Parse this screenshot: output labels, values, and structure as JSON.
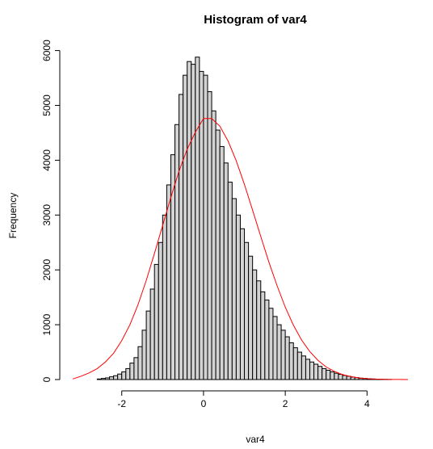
{
  "chart_data": {
    "type": "bar",
    "title": "Histogram of var4",
    "xlabel": "var4",
    "ylabel": "Frequency",
    "xlim": [
      -3.2,
      5.1
    ],
    "ylim": [
      0,
      6000
    ],
    "x_ticks": [
      -2,
      0,
      2,
      4
    ],
    "y_ticks": [
      0,
      1000,
      2000,
      3000,
      4000,
      5000,
      6000
    ],
    "bin_width": 0.1,
    "bin_start": -2.6,
    "counts": [
      10,
      20,
      30,
      50,
      70,
      100,
      140,
      200,
      300,
      400,
      600,
      900,
      1250,
      1650,
      2100,
      2500,
      3000,
      3550,
      4100,
      4650,
      5200,
      5550,
      5800,
      5750,
      5880,
      5620,
      5550,
      5250,
      4900,
      4550,
      4250,
      3950,
      3600,
      3300,
      3000,
      2750,
      2500,
      2250,
      2000,
      1800,
      1600,
      1450,
      1300,
      1150,
      1000,
      900,
      780,
      670,
      580,
      500,
      430,
      370,
      320,
      280,
      240,
      200,
      170,
      140,
      115,
      95,
      75,
      60,
      45,
      35,
      25,
      20,
      15,
      10,
      7,
      5,
      3,
      2
    ],
    "bar_color": "#d3d3d3",
    "series": [
      {
        "name": "",
        "type": "line",
        "color": "#ff0000",
        "x": [
          -3.2,
          -3.0,
          -2.8,
          -2.6,
          -2.4,
          -2.2,
          -2.0,
          -1.8,
          -1.6,
          -1.4,
          -1.2,
          -1.0,
          -0.8,
          -0.6,
          -0.4,
          -0.2,
          0.0,
          0.2,
          0.4,
          0.6,
          0.8,
          1.0,
          1.2,
          1.4,
          1.6,
          1.8,
          2.0,
          2.2,
          2.4,
          2.6,
          2.8,
          3.0,
          3.2,
          3.4,
          3.6,
          3.8,
          4.0,
          4.2,
          4.4,
          4.6,
          4.8,
          5.0
        ],
        "y": [
          10,
          60,
          120,
          200,
          320,
          480,
          710,
          1000,
          1370,
          1810,
          2300,
          2810,
          3320,
          3800,
          4200,
          4510,
          4760,
          4760,
          4620,
          4350,
          3990,
          3560,
          3090,
          2610,
          2140,
          1710,
          1320,
          990,
          720,
          510,
          350,
          230,
          150,
          90,
          55,
          30,
          17,
          9,
          4,
          2,
          1,
          0
        ]
      }
    ]
  }
}
